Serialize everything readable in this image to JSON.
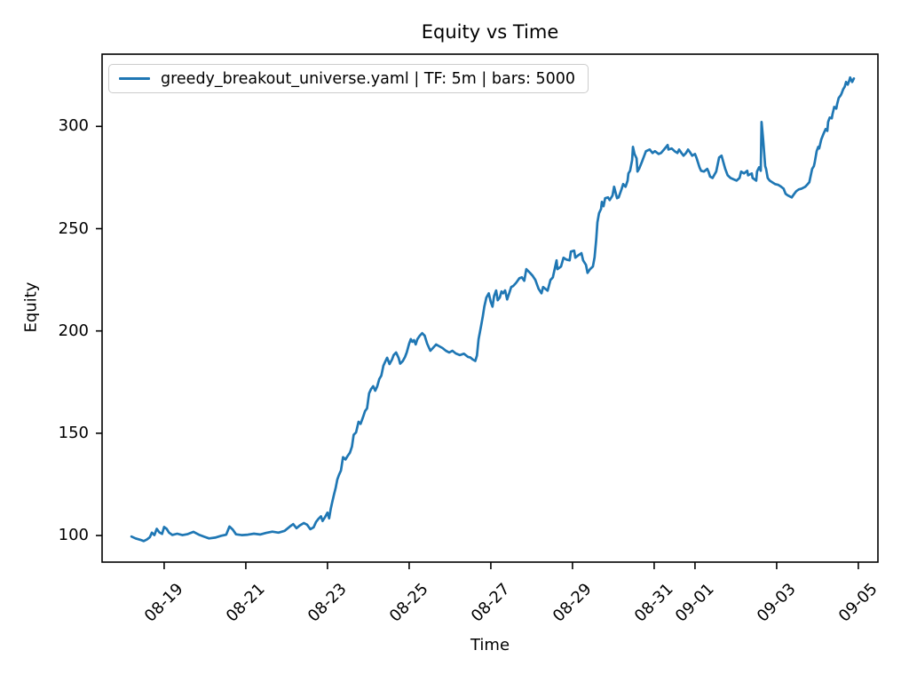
{
  "chart_data": {
    "type": "line",
    "title": "Equity vs Time",
    "xlabel": "Time",
    "ylabel": "Equity",
    "legend": [
      "greedy_breakout_universe.yaml | TF: 5m | bars: 5000"
    ],
    "legend_location": "upper left",
    "grid": false,
    "x_axis": {
      "unit": "date (MM-DD), x encoded as days since 08-18",
      "lim": [
        -0.52,
        18.48
      ],
      "tick_rotation_deg": 45,
      "ticks": [
        {
          "day": 1,
          "label": "08-19"
        },
        {
          "day": 3,
          "label": "08-21"
        },
        {
          "day": 5,
          "label": "08-23"
        },
        {
          "day": 7,
          "label": "08-25"
        },
        {
          "day": 9,
          "label": "08-27"
        },
        {
          "day": 11,
          "label": "08-29"
        },
        {
          "day": 13,
          "label": "08-31"
        },
        {
          "day": 14,
          "label": "09-01"
        },
        {
          "day": 16,
          "label": "09-03"
        },
        {
          "day": 18,
          "label": "09-05"
        }
      ]
    },
    "y_axis": {
      "lim": [
        87,
        335.3
      ],
      "ticks": [
        100,
        150,
        200,
        250,
        300
      ]
    },
    "series": [
      {
        "name": "greedy_breakout_universe.yaml | TF: 5m | bars: 5000",
        "color": "#1f77b4",
        "points": [
          [
            0.2,
            99.5
          ],
          [
            0.3,
            98.6
          ],
          [
            0.42,
            97.9
          ],
          [
            0.5,
            97.3
          ],
          [
            0.58,
            98.1
          ],
          [
            0.65,
            99.2
          ],
          [
            0.7,
            101.4
          ],
          [
            0.76,
            100.2
          ],
          [
            0.82,
            103.3
          ],
          [
            0.88,
            101.6
          ],
          [
            0.95,
            100.8
          ],
          [
            1.0,
            104.2
          ],
          [
            1.06,
            103.3
          ],
          [
            1.12,
            101.4
          ],
          [
            1.2,
            100.3
          ],
          [
            1.32,
            100.9
          ],
          [
            1.45,
            100.2
          ],
          [
            1.58,
            100.7
          ],
          [
            1.72,
            101.8
          ],
          [
            1.85,
            100.4
          ],
          [
            1.98,
            99.4
          ],
          [
            2.1,
            98.6
          ],
          [
            2.25,
            99.0
          ],
          [
            2.4,
            99.9
          ],
          [
            2.52,
            100.4
          ],
          [
            2.6,
            104.4
          ],
          [
            2.68,
            102.9
          ],
          [
            2.76,
            100.6
          ],
          [
            2.9,
            100.2
          ],
          [
            3.05,
            100.4
          ],
          [
            3.2,
            100.9
          ],
          [
            3.35,
            100.5
          ],
          [
            3.5,
            101.3
          ],
          [
            3.65,
            101.9
          ],
          [
            3.8,
            101.4
          ],
          [
            3.95,
            102.3
          ],
          [
            4.08,
            104.4
          ],
          [
            4.16,
            105.6
          ],
          [
            4.24,
            103.6
          ],
          [
            4.32,
            104.9
          ],
          [
            4.42,
            106.1
          ],
          [
            4.5,
            105.3
          ],
          [
            4.58,
            103.1
          ],
          [
            4.66,
            104.0
          ],
          [
            4.72,
            106.6
          ],
          [
            4.78,
            108.2
          ],
          [
            4.84,
            109.4
          ],
          [
            4.88,
            107.1
          ],
          [
            4.94,
            109.0
          ],
          [
            5.0,
            111.2
          ],
          [
            5.04,
            108.4
          ],
          [
            5.08,
            113.1
          ],
          [
            5.12,
            116.6
          ],
          [
            5.16,
            120.1
          ],
          [
            5.2,
            123.2
          ],
          [
            5.24,
            127.4
          ],
          [
            5.28,
            129.6
          ],
          [
            5.33,
            131.8
          ],
          [
            5.38,
            138.3
          ],
          [
            5.44,
            137.2
          ],
          [
            5.5,
            139.1
          ],
          [
            5.55,
            140.5
          ],
          [
            5.6,
            143.5
          ],
          [
            5.64,
            149.2
          ],
          [
            5.7,
            150.4
          ],
          [
            5.76,
            155.6
          ],
          [
            5.81,
            154.6
          ],
          [
            5.87,
            157.8
          ],
          [
            5.92,
            160.8
          ],
          [
            5.97,
            162.2
          ],
          [
            6.02,
            169.5
          ],
          [
            6.07,
            171.7
          ],
          [
            6.12,
            173.0
          ],
          [
            6.17,
            170.8
          ],
          [
            6.22,
            173.0
          ],
          [
            6.27,
            176.5
          ],
          [
            6.32,
            178.2
          ],
          [
            6.37,
            183.0
          ],
          [
            6.42,
            185.2
          ],
          [
            6.46,
            186.9
          ],
          [
            6.52,
            183.8
          ],
          [
            6.58,
            186.0
          ],
          [
            6.62,
            188.2
          ],
          [
            6.68,
            189.5
          ],
          [
            6.74,
            186.9
          ],
          [
            6.78,
            184.0
          ],
          [
            6.84,
            185.2
          ],
          [
            6.9,
            187.3
          ],
          [
            6.94,
            189.5
          ],
          [
            7.0,
            193.8
          ],
          [
            7.04,
            196.0
          ],
          [
            7.08,
            194.7
          ],
          [
            7.12,
            195.5
          ],
          [
            7.16,
            193.4
          ],
          [
            7.2,
            195.9
          ],
          [
            7.26,
            197.7
          ],
          [
            7.32,
            198.9
          ],
          [
            7.38,
            197.7
          ],
          [
            7.44,
            193.8
          ],
          [
            7.52,
            190.3
          ],
          [
            7.58,
            191.6
          ],
          [
            7.66,
            193.4
          ],
          [
            7.74,
            192.5
          ],
          [
            7.82,
            191.6
          ],
          [
            7.9,
            190.3
          ],
          [
            7.98,
            189.5
          ],
          [
            8.06,
            190.3
          ],
          [
            8.14,
            189.0
          ],
          [
            8.24,
            188.2
          ],
          [
            8.34,
            188.9
          ],
          [
            8.44,
            187.3
          ],
          [
            8.5,
            187.0
          ],
          [
            8.56,
            186.0
          ],
          [
            8.62,
            185.3
          ],
          [
            8.66,
            188.0
          ],
          [
            8.7,
            195.9
          ],
          [
            8.76,
            202.4
          ],
          [
            8.8,
            206.7
          ],
          [
            8.84,
            211.9
          ],
          [
            8.89,
            216.3
          ],
          [
            8.95,
            218.4
          ],
          [
            9.0,
            214.1
          ],
          [
            9.04,
            211.9
          ],
          [
            9.08,
            217.1
          ],
          [
            9.13,
            219.8
          ],
          [
            9.17,
            215.0
          ],
          [
            9.22,
            216.3
          ],
          [
            9.26,
            219.3
          ],
          [
            9.3,
            218.4
          ],
          [
            9.35,
            219.8
          ],
          [
            9.4,
            215.4
          ],
          [
            9.45,
            218.4
          ],
          [
            9.5,
            221.5
          ],
          [
            9.55,
            222.0
          ],
          [
            9.62,
            223.5
          ],
          [
            9.7,
            225.8
          ],
          [
            9.76,
            226.2
          ],
          [
            9.82,
            224.5
          ],
          [
            9.87,
            230.2
          ],
          [
            9.96,
            228.4
          ],
          [
            10.02,
            227.1
          ],
          [
            10.09,
            224.9
          ],
          [
            10.17,
            220.6
          ],
          [
            10.24,
            218.4
          ],
          [
            10.28,
            221.5
          ],
          [
            10.39,
            219.7
          ],
          [
            10.46,
            224.9
          ],
          [
            10.52,
            226.2
          ],
          [
            10.61,
            234.5
          ],
          [
            10.63,
            230.2
          ],
          [
            10.72,
            231.5
          ],
          [
            10.78,
            235.8
          ],
          [
            10.85,
            234.9
          ],
          [
            10.93,
            234.5
          ],
          [
            10.96,
            238.8
          ],
          [
            11.04,
            239.3
          ],
          [
            11.07,
            235.8
          ],
          [
            11.15,
            237.1
          ],
          [
            11.22,
            238.0
          ],
          [
            11.26,
            234.5
          ],
          [
            11.33,
            232.3
          ],
          [
            11.37,
            228.4
          ],
          [
            11.43,
            230.2
          ],
          [
            11.5,
            231.5
          ],
          [
            11.54,
            236.0
          ],
          [
            11.58,
            244.5
          ],
          [
            11.61,
            253.1
          ],
          [
            11.65,
            257.5
          ],
          [
            11.7,
            259.7
          ],
          [
            11.72,
            263.1
          ],
          [
            11.76,
            261.0
          ],
          [
            11.8,
            264.9
          ],
          [
            11.87,
            265.3
          ],
          [
            11.91,
            264.0
          ],
          [
            11.98,
            266.2
          ],
          [
            12.02,
            270.5
          ],
          [
            12.09,
            264.9
          ],
          [
            12.13,
            265.3
          ],
          [
            12.2,
            269.2
          ],
          [
            12.24,
            271.8
          ],
          [
            12.3,
            270.5
          ],
          [
            12.35,
            273.5
          ],
          [
            12.37,
            277.0
          ],
          [
            12.41,
            278.3
          ],
          [
            12.46,
            283.5
          ],
          [
            12.48,
            290.0
          ],
          [
            12.52,
            286.5
          ],
          [
            12.57,
            284.4
          ],
          [
            12.59,
            277.9
          ],
          [
            12.63,
            279.2
          ],
          [
            12.7,
            282.6
          ],
          [
            12.74,
            284.8
          ],
          [
            12.8,
            287.9
          ],
          [
            12.89,
            288.7
          ],
          [
            12.96,
            287.0
          ],
          [
            13.02,
            287.9
          ],
          [
            13.11,
            286.5
          ],
          [
            13.17,
            287.0
          ],
          [
            13.24,
            288.7
          ],
          [
            13.33,
            290.9
          ],
          [
            13.35,
            288.7
          ],
          [
            13.43,
            289.2
          ],
          [
            13.5,
            287.9
          ],
          [
            13.57,
            287.0
          ],
          [
            13.61,
            288.7
          ],
          [
            13.67,
            287.0
          ],
          [
            13.72,
            285.7
          ],
          [
            13.78,
            287.0
          ],
          [
            13.83,
            288.7
          ],
          [
            13.89,
            287.0
          ],
          [
            13.93,
            285.7
          ],
          [
            14.0,
            286.5
          ],
          [
            14.04,
            284.4
          ],
          [
            14.11,
            280.0
          ],
          [
            14.15,
            278.3
          ],
          [
            14.22,
            277.9
          ],
          [
            14.3,
            279.2
          ],
          [
            14.33,
            277.9
          ],
          [
            14.37,
            275.5
          ],
          [
            14.43,
            274.8
          ],
          [
            14.52,
            277.9
          ],
          [
            14.59,
            284.8
          ],
          [
            14.65,
            285.7
          ],
          [
            14.74,
            279.2
          ],
          [
            14.8,
            276.1
          ],
          [
            14.87,
            274.8
          ],
          [
            14.96,
            274.0
          ],
          [
            15.02,
            273.5
          ],
          [
            15.09,
            274.8
          ],
          [
            15.13,
            277.9
          ],
          [
            15.2,
            277.0
          ],
          [
            15.28,
            278.3
          ],
          [
            15.3,
            276.1
          ],
          [
            15.39,
            277.0
          ],
          [
            15.41,
            274.8
          ],
          [
            15.5,
            273.5
          ],
          [
            15.52,
            277.9
          ],
          [
            15.57,
            280.0
          ],
          [
            15.61,
            278.3
          ],
          [
            15.63,
            302.2
          ],
          [
            15.67,
            293.5
          ],
          [
            15.72,
            280.5
          ],
          [
            15.74,
            279.2
          ],
          [
            15.78,
            274.8
          ],
          [
            15.83,
            273.5
          ],
          [
            15.89,
            272.7
          ],
          [
            15.96,
            271.8
          ],
          [
            16.04,
            271.4
          ],
          [
            16.11,
            270.5
          ],
          [
            16.17,
            269.6
          ],
          [
            16.22,
            267.0
          ],
          [
            16.28,
            266.2
          ],
          [
            16.37,
            265.3
          ],
          [
            16.43,
            267.0
          ],
          [
            16.48,
            268.3
          ],
          [
            16.54,
            269.2
          ],
          [
            16.61,
            269.6
          ],
          [
            16.7,
            270.5
          ],
          [
            16.76,
            271.8
          ],
          [
            16.8,
            272.7
          ],
          [
            16.87,
            279.2
          ],
          [
            16.91,
            280.5
          ],
          [
            16.93,
            282.2
          ],
          [
            16.98,
            287.9
          ],
          [
            17.02,
            290.0
          ],
          [
            17.04,
            289.2
          ],
          [
            17.09,
            293.5
          ],
          [
            17.15,
            296.5
          ],
          [
            17.2,
            298.7
          ],
          [
            17.24,
            297.8
          ],
          [
            17.26,
            302.2
          ],
          [
            17.3,
            304.3
          ],
          [
            17.35,
            303.9
          ],
          [
            17.37,
            306.1
          ],
          [
            17.41,
            309.5
          ],
          [
            17.46,
            308.7
          ],
          [
            17.48,
            310.8
          ],
          [
            17.52,
            313.9
          ],
          [
            17.57,
            315.2
          ],
          [
            17.59,
            316.1
          ],
          [
            17.63,
            318.2
          ],
          [
            17.67,
            319.5
          ],
          [
            17.7,
            321.7
          ],
          [
            17.74,
            320.4
          ],
          [
            17.78,
            322.5
          ],
          [
            17.8,
            323.9
          ],
          [
            17.85,
            321.7
          ],
          [
            17.89,
            323.4
          ]
        ]
      }
    ]
  },
  "style": {
    "line_color": "#1f77b4",
    "axis_color": "#000000",
    "text_color": "#000000",
    "legend_border_color": "#cccccc",
    "background": "#ffffff"
  }
}
